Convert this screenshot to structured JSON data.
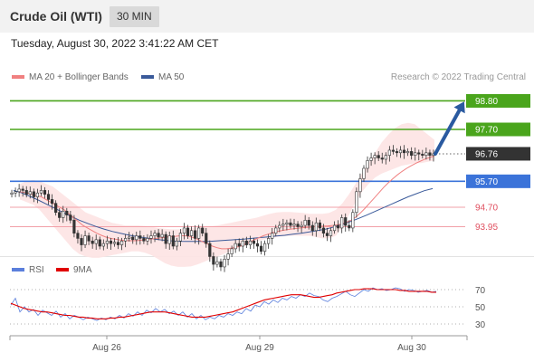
{
  "header": {
    "title": "Crude Oil (WTI)",
    "timeframe": "30 MIN"
  },
  "datetime": "Tuesday, August 30, 2022 3:41:22 AM CET",
  "legend": {
    "ma20_label": "MA 20 + Bollinger Bands",
    "ma50_label": "MA 50",
    "rsi_label": "RSI",
    "ma9_label": "9MA"
  },
  "credit": "Research © 2022 Trading Central",
  "colors": {
    "green_level": "#4aa51c",
    "blue_level": "#3b73d9",
    "red_level": "#e05060",
    "current_label": "#333333",
    "ma20": "#f08080",
    "ma50": "#3a5a9a",
    "bollinger_fill": "#fde3e3",
    "rsi": "#5b7fdc",
    "ma9": "#e00000",
    "candle_up": "#2a8a2a",
    "candle_down": "#a02020",
    "arrow": "#2a5aa0"
  },
  "chart_data": [
    {
      "type": "candlestick",
      "title": "Crude Oil (WTI)",
      "timeframe": "30 MIN",
      "x_tick_labels": [
        "Aug 26",
        "Aug 29",
        "Aug 30"
      ],
      "ylim": [
        93.2,
        99.2
      ],
      "levels": [
        {
          "value": 98.8,
          "label": "98.80",
          "kind": "resistance"
        },
        {
          "value": 97.7,
          "label": "97.70",
          "kind": "resistance"
        },
        {
          "value": 96.76,
          "label": "96.76",
          "kind": "current"
        },
        {
          "value": 95.7,
          "label": "95.70",
          "kind": "pivot"
        },
        {
          "value": 94.7,
          "label": "94.70",
          "kind": "support"
        },
        {
          "value": 93.95,
          "label": "93.95",
          "kind": "support"
        }
      ],
      "close": [
        95.25,
        95.3,
        95.4,
        95.35,
        95.2,
        95.3,
        95.1,
        95.25,
        95.35,
        95.2,
        95.0,
        94.85,
        94.5,
        94.3,
        94.55,
        94.4,
        94.2,
        93.7,
        93.5,
        93.25,
        93.6,
        93.4,
        93.3,
        93.45,
        93.2,
        93.3,
        93.4,
        93.3,
        93.35,
        93.25,
        93.4,
        93.5,
        93.55,
        93.45,
        93.6,
        93.5,
        93.4,
        93.5,
        93.6,
        93.7,
        93.55,
        93.65,
        93.3,
        93.6,
        93.2,
        93.4,
        93.7,
        93.9,
        93.6,
        93.8,
        93.5,
        93.9,
        93.7,
        93.3,
        92.8,
        92.5,
        92.6,
        92.4,
        92.7,
        92.9,
        93.1,
        93.3,
        93.2,
        93.4,
        93.25,
        93.4,
        93.3,
        93.2,
        93.0,
        93.3,
        93.5,
        93.7,
        93.9,
        94.0,
        94.05,
        94.1,
        94.0,
        94.05,
        93.95,
        94.0,
        94.2,
        94.0,
        93.8,
        94.1,
        93.9,
        93.7,
        93.6,
        93.8,
        94.0,
        93.9,
        94.3,
        94.0,
        93.9,
        94.5,
        95.3,
        95.8,
        96.2,
        96.5,
        96.6,
        96.7,
        96.6,
        96.55,
        96.7,
        96.9,
        96.85,
        96.8,
        96.9,
        96.8,
        96.85,
        96.7,
        96.8,
        96.75,
        96.7,
        96.8,
        96.7,
        96.76
      ],
      "ma20": [
        95.3,
        95.28,
        95.25,
        95.2,
        95.15,
        95.1,
        95.0,
        94.9,
        94.8,
        94.7,
        94.6,
        94.45,
        94.3,
        94.15,
        94.0,
        93.9,
        93.8,
        93.7,
        93.62,
        93.55,
        93.5,
        93.47,
        93.44,
        93.42,
        93.41,
        93.41,
        93.42,
        93.44,
        93.46,
        93.48,
        93.5,
        93.52,
        93.55,
        93.57,
        93.58,
        93.6,
        93.6,
        93.58,
        93.52,
        93.45,
        93.36,
        93.28,
        93.2,
        93.14,
        93.1,
        93.1,
        93.12,
        93.15,
        93.2,
        93.27,
        93.35,
        93.44,
        93.52,
        93.6,
        93.66,
        93.72,
        93.76,
        93.8,
        93.83,
        93.86,
        93.88,
        93.9,
        93.92,
        93.93,
        93.95,
        93.96,
        93.97,
        93.98,
        94.0,
        94.02,
        94.06,
        94.12,
        94.2,
        94.32,
        94.48,
        94.66,
        94.86,
        95.06,
        95.26,
        95.46,
        95.64,
        95.8,
        95.95,
        96.08,
        96.2,
        96.3,
        96.4,
        96.48,
        96.56,
        96.62,
        96.68
      ],
      "ma50": [
        95.35,
        95.25,
        95.12,
        94.98,
        94.82,
        94.66,
        94.5,
        94.35,
        94.2,
        94.08,
        93.96,
        93.86,
        93.77,
        93.7,
        93.63,
        93.57,
        93.52,
        93.48,
        93.44,
        93.41,
        93.39,
        93.38,
        93.38,
        93.38,
        93.39,
        93.41,
        93.43,
        93.45,
        93.47,
        93.5,
        93.53,
        93.56,
        93.59,
        93.62,
        93.66,
        93.7,
        93.75,
        93.8,
        93.86,
        93.94,
        94.04,
        94.15,
        94.27,
        94.4,
        94.54,
        94.68,
        94.82,
        94.96,
        95.1,
        95.22,
        95.34,
        95.42
      ],
      "bollinger_upper": [
        95.6,
        95.7,
        95.75,
        95.7,
        95.6,
        95.5,
        95.3,
        95.1,
        94.9,
        94.7,
        94.5,
        94.4,
        94.3,
        94.2,
        94.1,
        94.05,
        94.0,
        94.0,
        94.0,
        93.98,
        93.95,
        93.9,
        93.87,
        93.85,
        93.85,
        93.87,
        93.9,
        93.93,
        93.95,
        93.97,
        94.0,
        94.05,
        94.1,
        94.15,
        94.2,
        94.25,
        94.3,
        94.38,
        94.45,
        94.5,
        94.52,
        94.52,
        94.5,
        94.48,
        94.45,
        94.45,
        94.45,
        94.48,
        94.6,
        94.85,
        95.2,
        95.6,
        96.0,
        96.4,
        96.8,
        97.2,
        97.5,
        97.75,
        97.9,
        97.95,
        97.9,
        97.7,
        97.5,
        97.3
      ],
      "bollinger_lower": [
        95.0,
        94.9,
        94.8,
        94.6,
        94.3,
        94.0,
        93.7,
        93.4,
        93.1,
        92.9,
        92.8,
        92.75,
        92.75,
        92.8,
        92.85,
        92.9,
        92.95,
        93.0,
        93.0,
        92.95,
        92.85,
        92.7,
        92.55,
        92.45,
        92.4,
        92.4,
        92.42,
        92.5,
        92.6,
        92.7,
        92.8,
        92.9,
        93.0,
        93.1,
        93.2,
        93.3,
        93.38,
        93.45,
        93.5,
        93.55,
        93.58,
        93.6,
        93.6,
        93.6,
        93.6,
        93.55,
        93.5,
        93.5,
        93.6,
        93.9,
        94.4,
        94.9,
        95.3,
        95.6,
        95.85,
        96.0,
        96.1,
        96.2,
        96.3,
        96.35,
        96.4,
        96.4,
        96.45,
        96.5
      ],
      "forecast": {
        "from": 96.76,
        "to": 98.8
      }
    },
    {
      "type": "line",
      "title": "RSI",
      "yticks": [
        70,
        50,
        30
      ],
      "ylim": [
        20,
        80
      ],
      "series": [
        {
          "name": "RSI",
          "values": [
            52,
            60,
            44,
            50,
            44,
            47,
            40,
            46,
            43,
            40,
            45,
            38,
            42,
            36,
            40,
            38,
            35,
            38,
            36,
            34,
            37,
            35,
            38,
            36,
            40,
            37,
            42,
            39,
            44,
            40,
            46,
            43,
            48,
            44,
            47,
            42,
            45,
            40,
            44,
            38,
            42,
            36,
            40,
            35,
            38,
            36,
            40,
            38,
            42,
            40,
            44,
            42,
            48,
            45,
            52,
            50,
            56,
            53,
            58,
            55,
            60,
            58,
            62,
            60,
            64,
            62,
            66,
            63,
            62,
            58,
            56,
            60,
            62,
            65,
            68,
            64,
            62,
            66,
            70,
            68,
            72,
            70,
            71,
            69,
            70,
            72,
            71,
            68,
            70,
            69,
            67,
            68,
            69,
            67,
            68
          ]
        },
        {
          "name": "9MA",
          "values": [
            54,
            52,
            50,
            48,
            47,
            46,
            45,
            44,
            44,
            43,
            42,
            41,
            40,
            40,
            39,
            38,
            38,
            37,
            37,
            36,
            36,
            36,
            37,
            37,
            38,
            38,
            39,
            40,
            41,
            42,
            43,
            44,
            44,
            44,
            44,
            43,
            42,
            41,
            40,
            39,
            38,
            38,
            38,
            38,
            39,
            40,
            41,
            42,
            43,
            44,
            46,
            48,
            50,
            52,
            54,
            56,
            58,
            59,
            60,
            61,
            62,
            63,
            64,
            64,
            64,
            63,
            62,
            61,
            61,
            62,
            63,
            64,
            66,
            67,
            68,
            69,
            70,
            70,
            71,
            71,
            71,
            70,
            70,
            70,
            70,
            70,
            69,
            69,
            68,
            68,
            68,
            68,
            68,
            67,
            67
          ]
        }
      ]
    }
  ]
}
